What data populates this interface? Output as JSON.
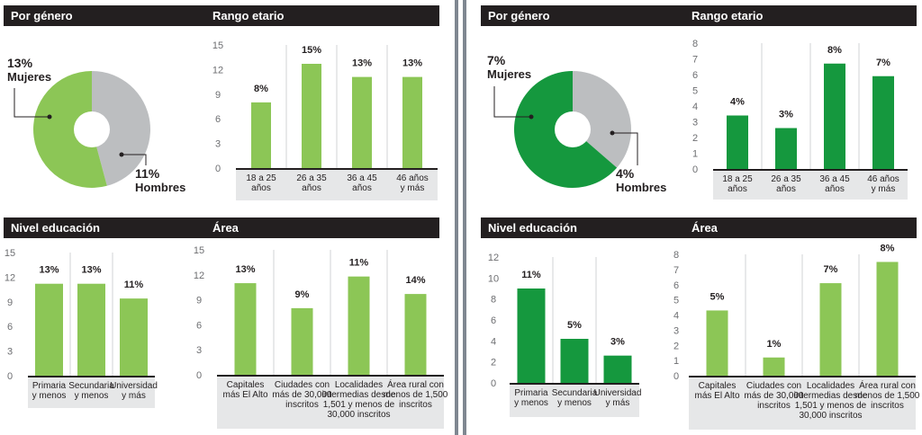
{
  "colors": {
    "light_green": "#8cc656",
    "dark_green": "#15983e",
    "gray": "#bcbec0",
    "header_bg": "#231f20",
    "axis_text": "#6d6e71",
    "label_bg": "#e6e7e8"
  },
  "panels": [
    {
      "headers": {
        "gender": "Por género",
        "age": "Rango etario",
        "education": "Nivel educación",
        "area": "Área"
      },
      "pie": {
        "women_pct": "13%",
        "women_label": "Mujeres",
        "men_pct": "11%",
        "men_label": "Hombres"
      }
    },
    {
      "headers": {
        "gender": "Por género",
        "age": "Rango etario",
        "education": "Nivel educación",
        "area": "Área"
      },
      "pie": {
        "women_pct": "7%",
        "women_label": "Mujeres",
        "men_pct": "4%",
        "men_label": "Hombres"
      }
    }
  ],
  "chart_data": [
    {
      "type": "pie",
      "panel": 0,
      "slices": [
        {
          "label": "Mujeres",
          "value": 13
        },
        {
          "label": "Hombres",
          "value": 11
        }
      ]
    },
    {
      "type": "bar",
      "panel": 0,
      "section": "age",
      "categories": [
        [
          "18 a 25",
          "años"
        ],
        [
          "26 a 35",
          "años"
        ],
        [
          "36 a 45",
          "años"
        ],
        [
          "46 años",
          "y más"
        ]
      ],
      "values": [
        8,
        15,
        13,
        13
      ],
      "bar_heights": [
        8,
        12.7,
        11.1,
        11.1
      ],
      "labels": [
        "8%",
        "15%",
        "13%",
        "13%"
      ],
      "yticks": [
        "15",
        "12",
        "9",
        "6",
        "3",
        "0"
      ],
      "ylim": [
        0,
        15
      ]
    },
    {
      "type": "bar",
      "panel": 0,
      "section": "education",
      "categories": [
        [
          "Primaria",
          "y menos"
        ],
        [
          "Secundaria",
          "y menos"
        ],
        [
          "Universidad",
          "y más"
        ]
      ],
      "values": [
        13,
        13,
        11
      ],
      "bar_heights": [
        11.2,
        11.2,
        9.4
      ],
      "labels": [
        "13%",
        "13%",
        "11%"
      ],
      "yticks": [
        "15",
        "12",
        "9",
        "6",
        "3",
        "0"
      ],
      "ylim": [
        0,
        15
      ]
    },
    {
      "type": "bar",
      "panel": 0,
      "section": "area",
      "categories": [
        [
          "Capitales",
          "más El Alto"
        ],
        [
          "Ciudades con",
          "más de 30,000",
          "inscritos"
        ],
        [
          "Localidades",
          "intermedias desde",
          "1,501 y menos de",
          "30,000 inscritos"
        ],
        [
          "Área rural con",
          "menos de 1,500",
          "inscritos"
        ]
      ],
      "values": [
        13,
        9,
        11,
        14
      ],
      "bar_heights": [
        11,
        8,
        11.8,
        9.7
      ],
      "labels": [
        "13%",
        "9%",
        "11%",
        "14%"
      ],
      "yticks": [
        "15",
        "12",
        "9",
        "6",
        "3",
        "0"
      ],
      "ylim": [
        0,
        15
      ]
    },
    {
      "type": "pie",
      "panel": 1,
      "slices": [
        {
          "label": "Mujeres",
          "value": 7
        },
        {
          "label": "Hombres",
          "value": 4
        }
      ]
    },
    {
      "type": "bar",
      "panel": 1,
      "section": "age",
      "categories": [
        [
          "18 a 25",
          "años"
        ],
        [
          "26 a 35",
          "años"
        ],
        [
          "36 a 45",
          "años"
        ],
        [
          "46 años",
          "y más"
        ]
      ],
      "values": [
        4,
        3,
        8,
        7
      ],
      "bar_heights": [
        3.4,
        2.6,
        6.7,
        5.9
      ],
      "labels": [
        "4%",
        "3%",
        "8%",
        "7%"
      ],
      "yticks": [
        "8",
        "7",
        "6",
        "5",
        "4",
        "3",
        "2",
        "1",
        "0"
      ],
      "ylim": [
        0,
        8
      ]
    },
    {
      "type": "bar",
      "panel": 1,
      "section": "education",
      "categories": [
        [
          "Primaria",
          "y menos"
        ],
        [
          "Secundaria",
          "y menos"
        ],
        [
          "Universidad",
          "y más"
        ]
      ],
      "values": [
        11,
        5,
        3
      ],
      "bar_heights": [
        9,
        4.2,
        2.6
      ],
      "labels": [
        "11%",
        "5%",
        "3%"
      ],
      "yticks": [
        "12",
        "10",
        "8",
        "6",
        "4",
        "2",
        "0"
      ],
      "ylim": [
        0,
        12
      ]
    },
    {
      "type": "bar",
      "panel": 1,
      "section": "area",
      "categories": [
        [
          "Capitales",
          "más El Alto"
        ],
        [
          "Ciudades con",
          "más de 30,000",
          "inscritos"
        ],
        [
          "Localidades",
          "intermedias desde",
          "1,501 y menos de",
          "30,000 inscritos"
        ],
        [
          "Área rural con",
          "menos de 1,500",
          "inscritos"
        ]
      ],
      "values": [
        5,
        1,
        7,
        8
      ],
      "bar_heights": [
        4.3,
        1.2,
        6.1,
        7.5
      ],
      "labels": [
        "5%",
        "1%",
        "7%",
        "8%"
      ],
      "yticks": [
        "8",
        "7",
        "6",
        "5",
        "4",
        "3",
        "2",
        "1",
        "0"
      ],
      "ylim": [
        0,
        8
      ]
    }
  ]
}
